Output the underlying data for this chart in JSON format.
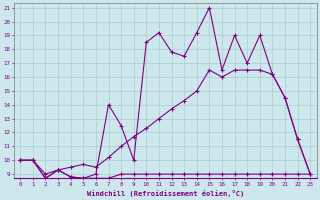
{
  "xlabel": "Windchill (Refroidissement éolien,°C)",
  "x_values": [
    0,
    1,
    2,
    3,
    4,
    5,
    6,
    7,
    8,
    9,
    10,
    11,
    12,
    13,
    14,
    15,
    16,
    17,
    18,
    19,
    20,
    21,
    22,
    23
  ],
  "line1": [
    10,
    10,
    8.7,
    9.3,
    8.8,
    8.7,
    8.7,
    8.7,
    9.0,
    9.0,
    9.0,
    9.0,
    9.0,
    9.0,
    9.0,
    9.0,
    9.0,
    9.0,
    9.0,
    9.0,
    9.0,
    9.0,
    9.0,
    9.0
  ],
  "line2": [
    10,
    10,
    9.0,
    9.3,
    9.5,
    9.7,
    9.5,
    10.2,
    11.0,
    11.7,
    12.3,
    13.0,
    13.7,
    14.3,
    15.0,
    16.5,
    16.0,
    16.5,
    16.5,
    16.5,
    16.2,
    14.5,
    11.5,
    9.0
  ],
  "line3": [
    10,
    10,
    8.7,
    9.3,
    8.8,
    8.7,
    9.0,
    14.0,
    12.5,
    10.0,
    18.5,
    19.2,
    17.8,
    17.5,
    19.2,
    21.0,
    16.5,
    19.0,
    17.0,
    19.0,
    16.2,
    14.5,
    11.5,
    9.0
  ],
  "line_color": "#800080",
  "bg_color": "#cce8ec",
  "grid_color": "#aacccc",
  "ylim_min": 9,
  "ylim_max": 21,
  "xlim_min": 0,
  "xlim_max": 23,
  "yticks": [
    9,
    10,
    11,
    12,
    13,
    14,
    15,
    16,
    17,
    18,
    19,
    20,
    21
  ],
  "xticks": [
    0,
    1,
    2,
    3,
    4,
    5,
    6,
    7,
    8,
    9,
    10,
    11,
    12,
    13,
    14,
    15,
    16,
    17,
    18,
    19,
    20,
    21,
    22,
    23
  ],
  "marker": "+",
  "marker_size": 3,
  "linewidth": 0.8,
  "tick_fontsize": 4.2,
  "xlabel_fontsize": 5.0
}
